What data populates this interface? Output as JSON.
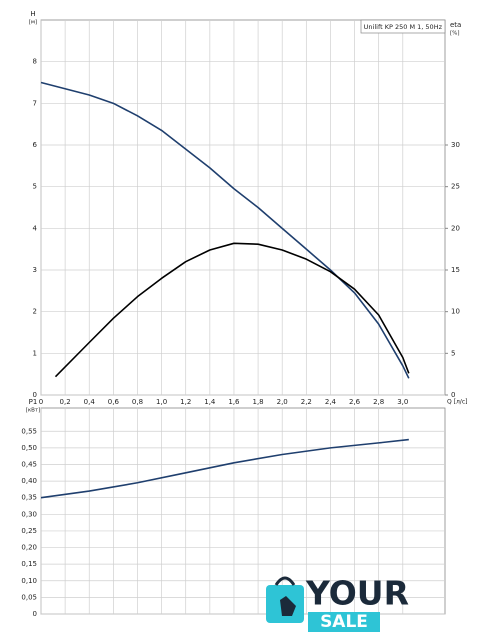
{
  "chart_data": [
    {
      "type": "line",
      "title": "Unilift KP 250 M 1, 50Hz",
      "ylabel": "H",
      "yunit": "[м]",
      "y2label": "eta",
      "y2unit": "[%]",
      "xlabel": "Q [л/с]",
      "xlim": [
        0,
        3.35
      ],
      "ylim": [
        0,
        9
      ],
      "y2lim": [
        0,
        45
      ],
      "grid": true,
      "xticks": [
        0,
        {
          "value": 0.2,
          "label": "0,2"
        },
        {
          "value": 0.4,
          "label": "0,4"
        },
        {
          "value": 0.6,
          "label": "0,6"
        },
        {
          "value": 0.8,
          "label": "0,8"
        },
        {
          "value": 1.0,
          "label": "1,0"
        },
        {
          "value": 1.2,
          "label": "1,2"
        },
        {
          "value": 1.4,
          "label": "1,4"
        },
        {
          "value": 1.6,
          "label": "1,6"
        },
        {
          "value": 1.8,
          "label": "1,8"
        },
        {
          "value": 2.0,
          "label": "2,0"
        },
        {
          "value": 2.2,
          "label": "2,2"
        },
        {
          "value": 2.4,
          "label": "2,4"
        },
        {
          "value": 2.6,
          "label": "2,6"
        },
        {
          "value": 2.8,
          "label": "2,8"
        },
        {
          "value": 3.0,
          "label": "3,0"
        }
      ],
      "yticks": [
        0,
        1,
        2,
        3,
        4,
        5,
        6,
        7,
        8
      ],
      "y2ticks": [
        0,
        5,
        10,
        15,
        20,
        25,
        30
      ],
      "series": [
        {
          "color": "#1f3f6e",
          "x": [
            0,
            0.2,
            0.4,
            0.6,
            0.8,
            1.0,
            1.2,
            1.4,
            1.6,
            1.8,
            2.0,
            2.2,
            2.4,
            2.6,
            2.8,
            3.0,
            3.05
          ],
          "values": [
            7.5,
            7.35,
            7.2,
            7.0,
            6.7,
            6.35,
            5.9,
            5.45,
            4.95,
            4.5,
            4.0,
            3.5,
            3.0,
            2.45,
            1.7,
            0.7,
            0.4
          ]
        },
        {
          "color": "#000000",
          "axis": "y2",
          "x": [
            0.12,
            0.4,
            0.6,
            0.8,
            1.0,
            1.2,
            1.4,
            1.6,
            1.8,
            2.0,
            2.2,
            2.4,
            2.6,
            2.8,
            3.0,
            3.05
          ],
          "values": [
            2.2,
            6.3,
            9.2,
            11.8,
            14.0,
            16.0,
            17.4,
            18.2,
            18.1,
            17.4,
            16.3,
            14.8,
            12.7,
            9.6,
            4.5,
            2.6
          ]
        }
      ]
    },
    {
      "type": "line",
      "ylabel": "P1",
      "yunit": "[кВт]",
      "xlim": [
        0,
        3.35
      ],
      "ylim": [
        0,
        0.62
      ],
      "grid": true,
      "yticks": [
        0,
        {
          "value": 0.05,
          "label": "0,05"
        },
        {
          "value": 0.1,
          "label": "0,10"
        },
        {
          "value": 0.15,
          "label": "0,15"
        },
        {
          "value": 0.2,
          "label": "0,20"
        },
        {
          "value": 0.25,
          "label": "0,25"
        },
        {
          "value": 0.3,
          "label": "0,30"
        },
        {
          "value": 0.35,
          "label": "0,35"
        },
        {
          "value": 0.4,
          "label": "0,40"
        },
        {
          "value": 0.45,
          "label": "0,45"
        },
        {
          "value": 0.5,
          "label": "0,50"
        },
        {
          "value": 0.55,
          "label": "0,55"
        }
      ],
      "series": [
        {
          "color": "#1f3f6e",
          "x": [
            0,
            0.4,
            0.8,
            1.2,
            1.6,
            2.0,
            2.4,
            2.8,
            3.05
          ],
          "values": [
            0.35,
            0.37,
            0.395,
            0.425,
            0.455,
            0.48,
            0.5,
            0.515,
            0.525
          ]
        }
      ]
    }
  ],
  "logo": {
    "text1": "YOUR",
    "text2": "SALE"
  }
}
